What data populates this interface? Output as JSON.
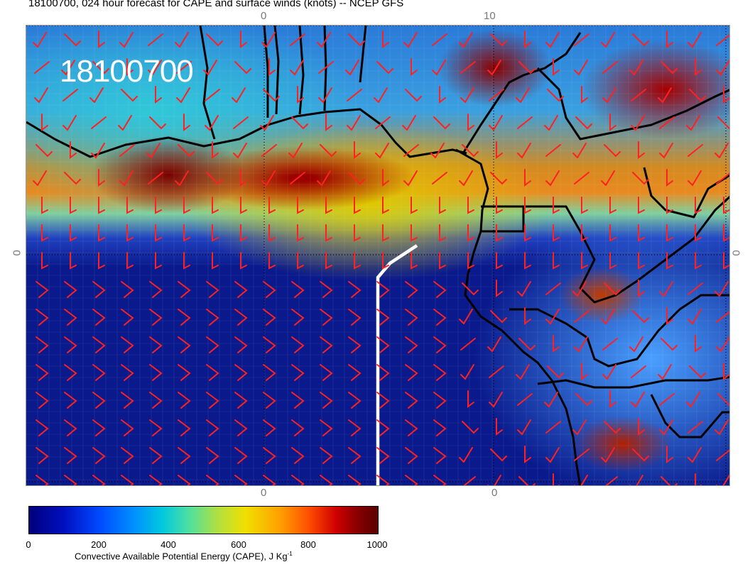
{
  "title": "18100700, 024 hour forecast for CAPE and surface winds (knots) -- NCEP GFS",
  "map": {
    "date_overlay": "18100700",
    "top_labels": [
      "0",
      "10"
    ],
    "bottom_labels": [
      "0",
      "0"
    ],
    "side_labels": [
      "0",
      "0"
    ],
    "colors": {
      "ocean_low": "#0a1a8c",
      "wind_barb": "#ff2020",
      "coastline": "#000000",
      "track_line": "#ffffff"
    }
  },
  "colorbar": {
    "ticks": [
      "0",
      "200",
      "400",
      "600",
      "800",
      "1000"
    ],
    "label": "Convective Available Potential Energy (CAPE), J Kg",
    "label_sup": "-1",
    "range": [
      0,
      1000
    ]
  }
}
